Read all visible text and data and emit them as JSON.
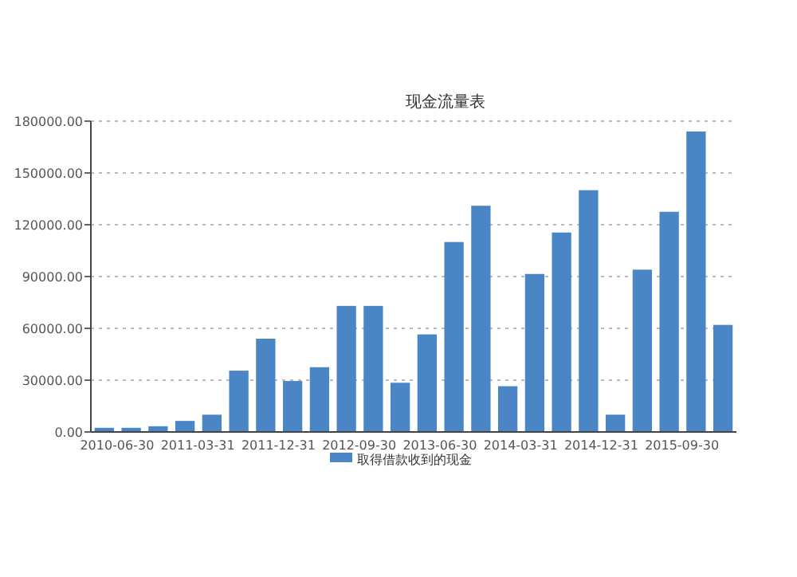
{
  "chart_data": {
    "type": "bar",
    "title": "现金流量表",
    "categories": [
      "2010-06-30",
      null,
      null,
      "2011-03-31",
      null,
      null,
      "2011-12-31",
      null,
      null,
      "2012-09-30",
      null,
      null,
      "2013-06-30",
      null,
      null,
      "2014-03-31",
      null,
      null,
      "2014-12-31",
      null,
      null,
      "2015-09-30",
      null,
      null
    ],
    "series": [
      {
        "name": "取得借款收到的现金",
        "color": "#4a86c6",
        "values": [
          2400,
          2400,
          3300,
          6400,
          10000,
          35500,
          54000,
          29500,
          37500,
          73000,
          73000,
          28500,
          56500,
          110000,
          131000,
          26500,
          91500,
          115500,
          140000,
          10000,
          94000,
          127500,
          174000,
          62000
        ]
      }
    ],
    "ylim": [
      0,
      180000
    ],
    "yticks": [
      {
        "value": 0,
        "label": "0.00"
      },
      {
        "value": 30000,
        "label": "30000.00"
      },
      {
        "value": 60000,
        "label": "60000.00"
      },
      {
        "value": 90000,
        "label": "90000.00"
      },
      {
        "value": 120000,
        "label": "120000.00"
      },
      {
        "value": 150000,
        "label": "150000.00"
      },
      {
        "value": 180000,
        "label": "180000.00"
      }
    ],
    "grid": "y",
    "legend": "bottom"
  }
}
